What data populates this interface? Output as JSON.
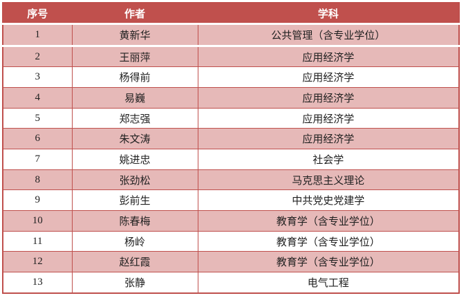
{
  "table": {
    "columns": [
      {
        "key": "index",
        "label": "序号"
      },
      {
        "key": "author",
        "label": "作者"
      },
      {
        "key": "subject",
        "label": "学科"
      }
    ],
    "rows": [
      {
        "index": "1",
        "author": "黄新华",
        "subject": "公共管理（含专业学位）",
        "shaded": true
      },
      {
        "index": "2",
        "author": "王丽萍",
        "subject": "应用经济学",
        "shaded": true
      },
      {
        "index": "3",
        "author": "杨得前",
        "subject": "应用经济学",
        "shaded": false
      },
      {
        "index": "4",
        "author": "易巍",
        "subject": "应用经济学",
        "shaded": true
      },
      {
        "index": "5",
        "author": "郑志强",
        "subject": "应用经济学",
        "shaded": false
      },
      {
        "index": "6",
        "author": "朱文涛",
        "subject": "应用经济学",
        "shaded": true
      },
      {
        "index": "7",
        "author": "姚进忠",
        "subject": "社会学",
        "shaded": false
      },
      {
        "index": "8",
        "author": "张劲松",
        "subject": "马克思主义理论",
        "shaded": true
      },
      {
        "index": "9",
        "author": "彭前生",
        "subject": "中共党史党建学",
        "shaded": false
      },
      {
        "index": "10",
        "author": "陈春梅",
        "subject": "教育学（含专业学位）",
        "shaded": true
      },
      {
        "index": "11",
        "author": "杨岭",
        "subject": "教育学（含专业学位）",
        "shaded": false
      },
      {
        "index": "12",
        "author": "赵红霞",
        "subject": "教育学（含专业学位）",
        "shaded": true
      },
      {
        "index": "13",
        "author": "张静",
        "subject": "电气工程",
        "shaded": false
      }
    ],
    "colors": {
      "header_bg": "#c0504d",
      "header_text": "#ffffff",
      "shaded_row_bg": "#e6b9b8",
      "border": "#bf4f4c",
      "body_text": "#212121"
    }
  }
}
